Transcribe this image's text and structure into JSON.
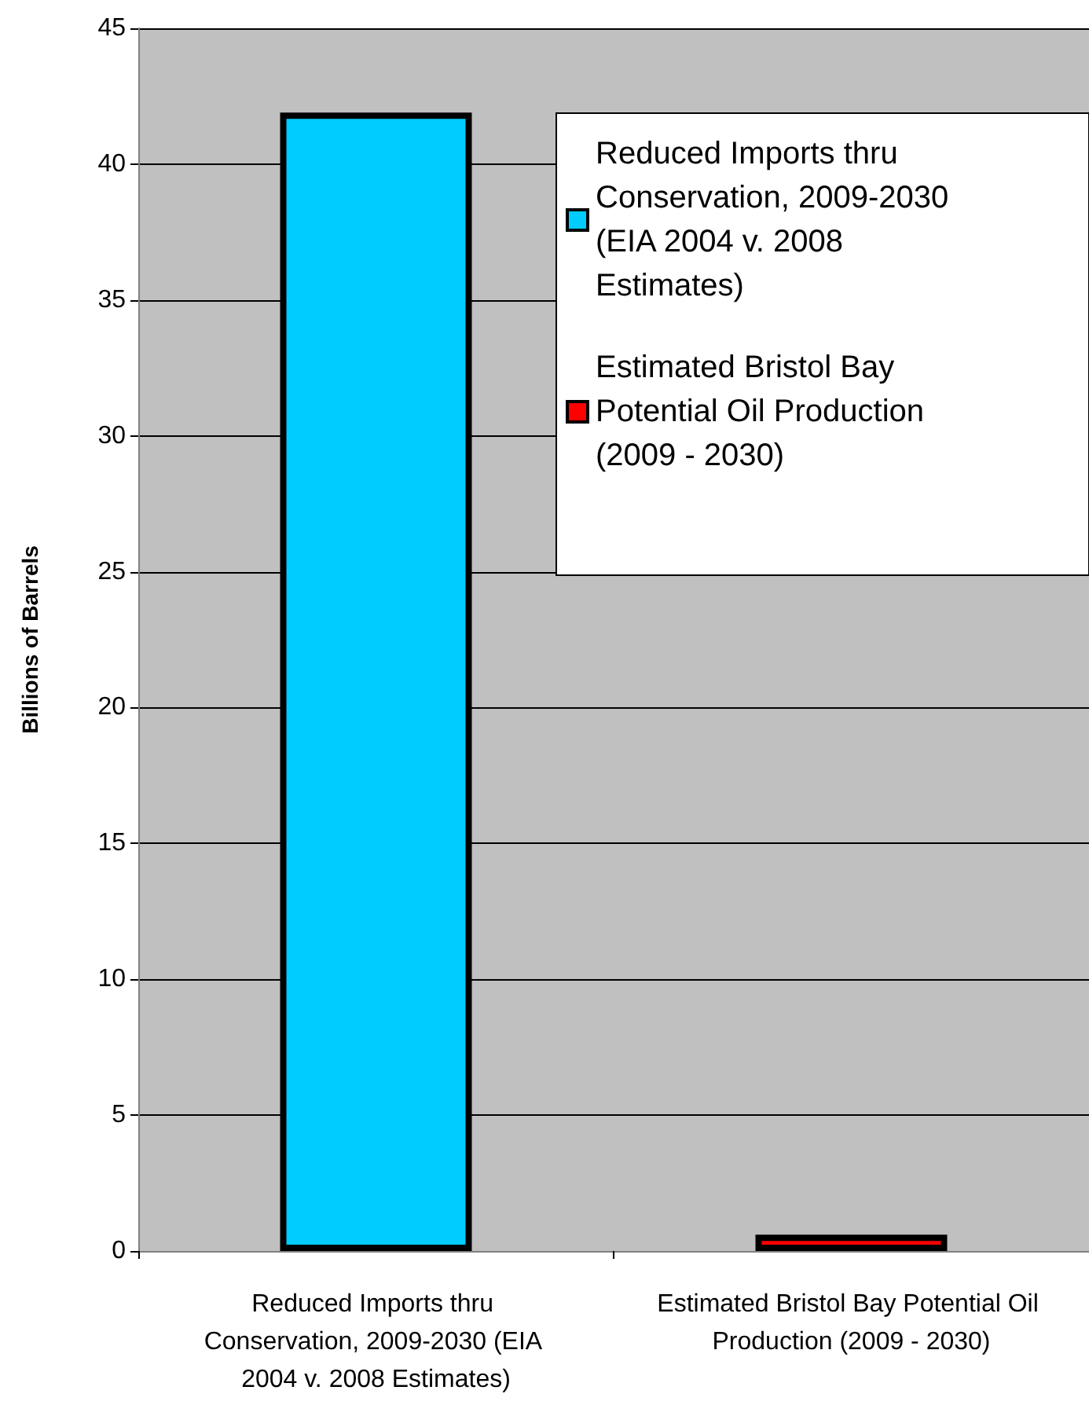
{
  "chart_data": {
    "type": "bar",
    "ylabel": "Billions of Barrels",
    "categories": [
      "Reduced Imports thru Conservation, 2009-2030 (EIA 2004 v. 2008 Estimates)",
      "Estimated Bristol Bay Potential Oil Production (2009 - 2030)"
    ],
    "series": [
      {
        "name": "Reduced Imports thru Conservation, 2009-2030 (EIA 2004 v. 2008 Estimates)",
        "color": "#00ccff",
        "values": [
          41.9,
          null
        ]
      },
      {
        "name": "Estimated Bristol Bay Potential Oil Production (2009 - 2030)",
        "color": "#ff0000",
        "values": [
          null,
          0.6
        ]
      }
    ],
    "stacked": true,
    "ylim": [
      0,
      45
    ],
    "yticks": [
      0,
      5,
      10,
      15,
      20,
      25,
      30,
      35,
      40,
      45
    ],
    "grid": "y",
    "legend": "top right"
  }
}
